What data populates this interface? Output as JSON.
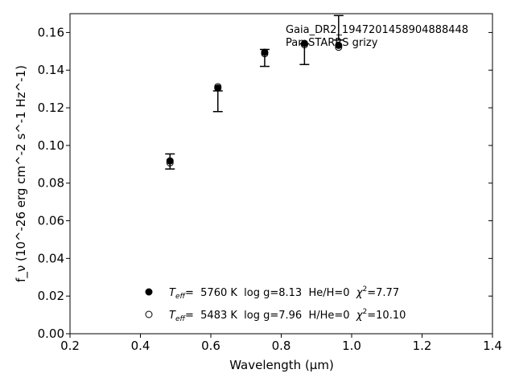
{
  "chart_data": {
    "type": "scatter",
    "xlabel": "Wavelength (μm)",
    "ylabel": "f_ν (10^-26 erg cm^-2 s^-1 Hz^-1)",
    "xlim": [
      0.2,
      1.4
    ],
    "ylim": [
      0.0,
      0.17
    ],
    "x_ticks": [
      "0.2",
      "0.4",
      "0.6",
      "0.8",
      "1.0",
      "1.2",
      "1.4"
    ],
    "y_ticks": [
      "0.00",
      "0.02",
      "0.04",
      "0.06",
      "0.08",
      "0.10",
      "0.12",
      "0.14",
      "0.16"
    ],
    "annotation": {
      "line1": "Gaia_DR2_1947201458904888448",
      "line2": "Pan-STARRS grizy"
    },
    "observed": {
      "x": [
        0.484,
        0.62,
        0.753,
        0.866,
        0.963
      ],
      "y": [
        0.0915,
        0.1235,
        0.1465,
        0.1485,
        0.1625
      ],
      "yerr": [
        0.004,
        0.0055,
        0.0045,
        0.0055,
        0.0065
      ]
    },
    "series": [
      {
        "marker": "filled-circle",
        "x": [
          0.484,
          0.62,
          0.753,
          0.866,
          0.963
        ],
        "y": [
          0.0918,
          0.1305,
          0.1495,
          0.1542,
          0.1532
        ]
      },
      {
        "marker": "open-circle",
        "x": [
          0.484,
          0.62,
          0.753,
          0.866,
          0.963
        ],
        "y": [
          0.0908,
          0.1312,
          0.1488,
          0.1535,
          0.1522
        ]
      }
    ],
    "legend": [
      {
        "marker": "filled-circle",
        "teff_label": "T",
        "teff_sub": "eff",
        "text": "=  5760 K  log g=8.13  He/H=0  ",
        "chi": "χ",
        "chi_sup": "2",
        "chi_val": "=7.77"
      },
      {
        "marker": "open-circle",
        "teff_label": "T",
        "teff_sub": "eff",
        "text": "=  5483 K  log g=7.96  H/He=0  ",
        "chi": "χ",
        "chi_sup": "2",
        "chi_val": "=10.10"
      }
    ]
  }
}
